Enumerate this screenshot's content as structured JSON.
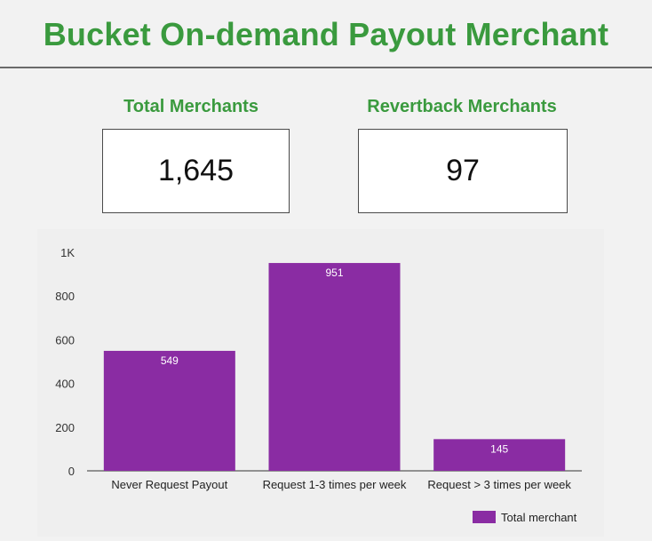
{
  "header": {
    "title": "Bucket On-demand Payout Merchant"
  },
  "kpis": [
    {
      "label": "Total Merchants",
      "value": "1,645"
    },
    {
      "label": "Revertback Merchants",
      "value": "97"
    }
  ],
  "colors": {
    "accent": "#3a9a3e",
    "bar": "#8a2ca3"
  },
  "chart_data": {
    "type": "bar",
    "categories": [
      "Never Request Payout",
      "Request 1-3 times per week",
      "Request > 3 times per week"
    ],
    "series": [
      {
        "name": "Total merchant",
        "values": [
          549,
          951,
          145
        ]
      }
    ],
    "ylim": [
      0,
      1000
    ],
    "yticks": [
      "0",
      "200",
      "400",
      "600",
      "800",
      "1K"
    ],
    "ytick_values": [
      0,
      200,
      400,
      600,
      800,
      1000
    ],
    "legend_position": "bottom-right",
    "grid": false
  }
}
